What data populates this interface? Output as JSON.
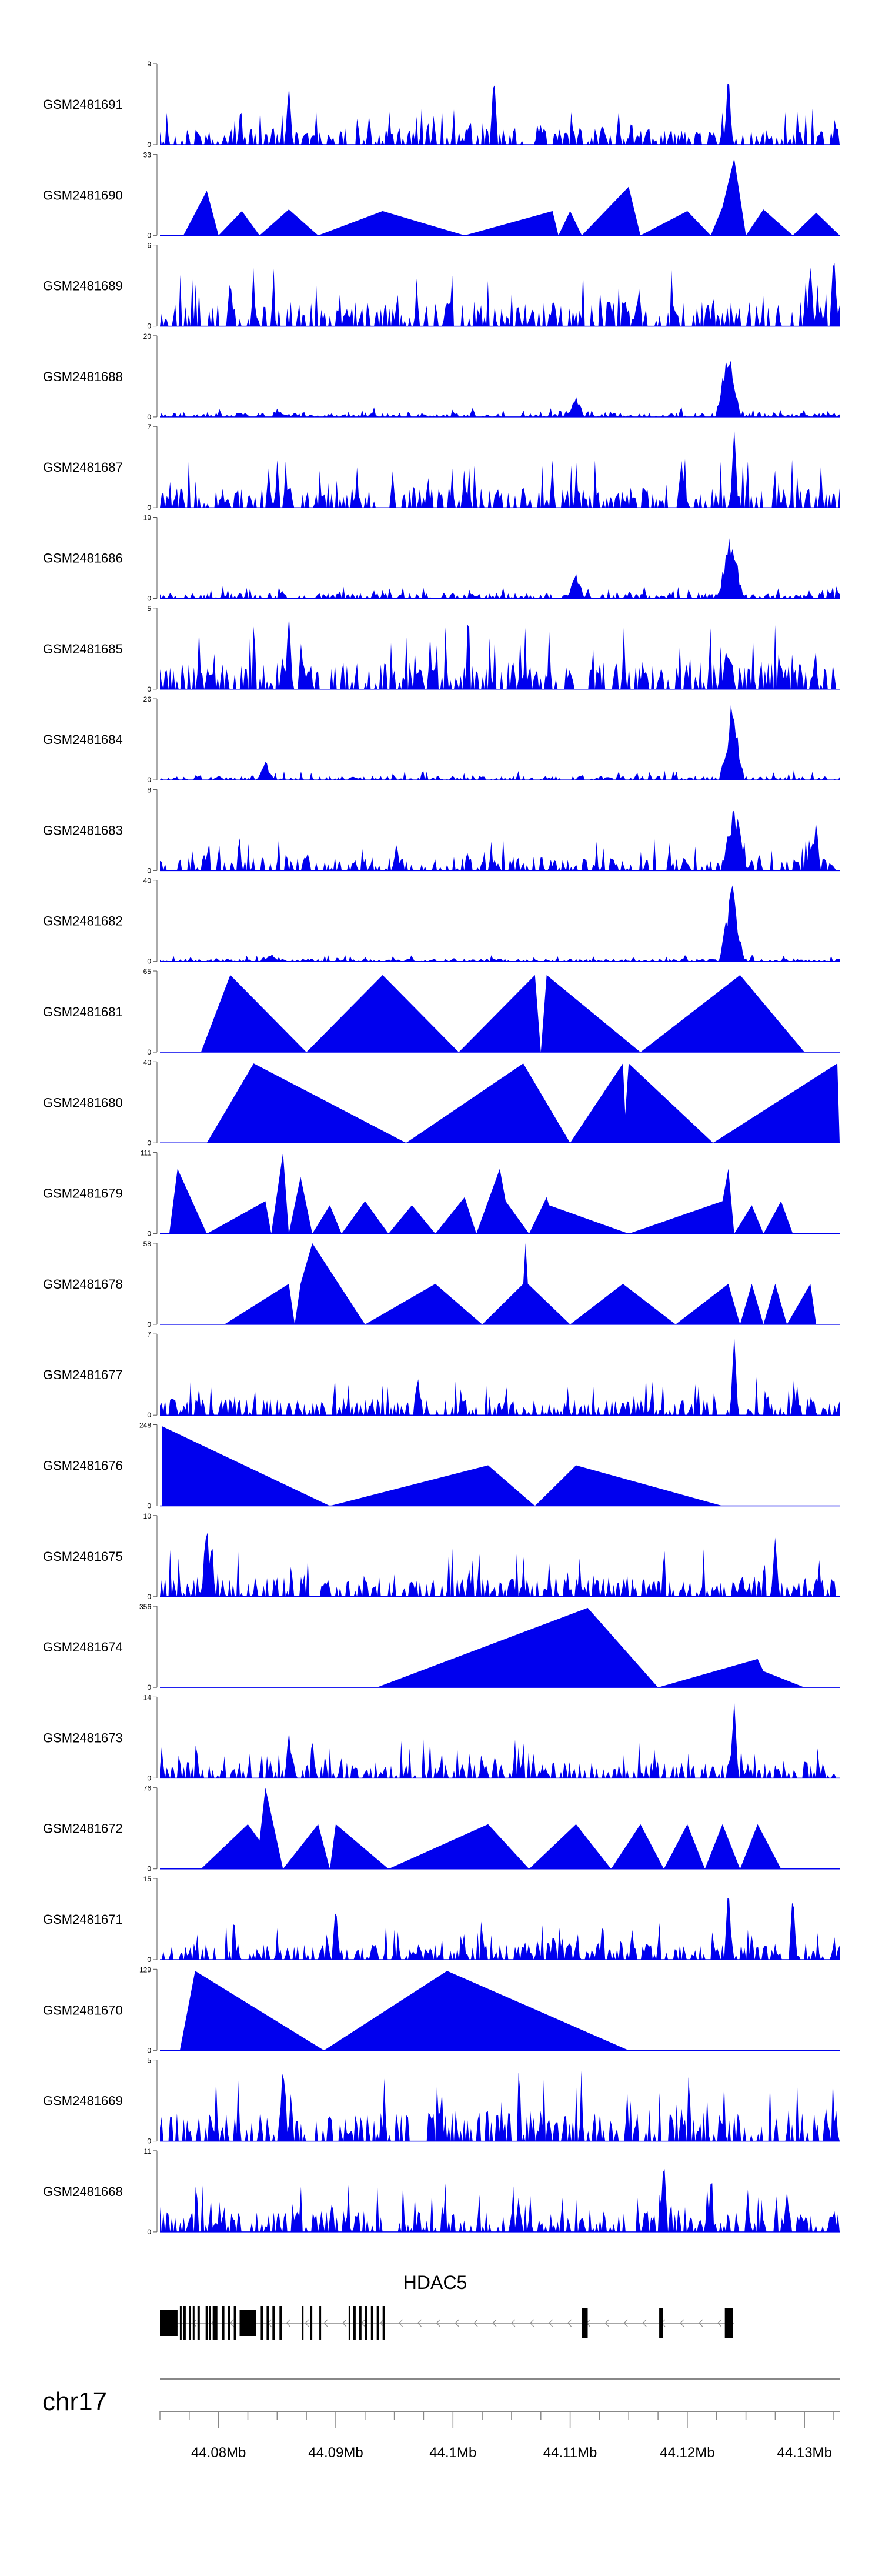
{
  "chart_data": {
    "type": "area",
    "title": "",
    "chromosome": "chr17",
    "xlim": [
      44.075,
      44.133
    ],
    "fill_color": "#0000EE",
    "x_tick_values": [
      44.08,
      44.09,
      44.1,
      44.11,
      44.12,
      44.13
    ],
    "x_tick_labels": [
      "44.08Mb",
      "44.09Mb",
      "44.1Mb",
      "44.11Mb",
      "44.12Mb",
      "44.13Mb"
    ],
    "gene": {
      "name": "HDAC5",
      "strand": "-",
      "start": 44.075,
      "end": 44.124,
      "exons": [
        [
          44.075,
          44.0765
        ],
        [
          44.0767,
          44.0768
        ],
        [
          44.077,
          44.0772
        ],
        [
          44.0775,
          44.0776
        ],
        [
          44.0778,
          44.0779
        ],
        [
          44.0782,
          44.0784
        ],
        [
          44.0789,
          44.0791
        ],
        [
          44.0792,
          44.0793
        ],
        [
          44.0795,
          44.0799
        ],
        [
          44.0803,
          44.0805
        ],
        [
          44.0808,
          44.081
        ],
        [
          44.0813,
          44.0815
        ],
        [
          44.0818,
          44.0832
        ],
        [
          44.0836,
          44.0838
        ],
        [
          44.0841,
          44.0843
        ],
        [
          44.0846,
          44.0848
        ],
        [
          44.0852,
          44.0854
        ],
        [
          44.0871,
          44.0872
        ],
        [
          44.0878,
          44.088
        ],
        [
          44.0886,
          44.0887
        ],
        [
          44.0911,
          44.0912
        ],
        [
          44.0915,
          44.0917
        ],
        [
          44.092,
          44.0922
        ],
        [
          44.0925,
          44.0927
        ],
        [
          44.093,
          44.0932
        ],
        [
          44.0935,
          44.0937
        ],
        [
          44.094,
          44.0942
        ],
        [
          44.111,
          44.1115
        ],
        [
          44.1176,
          44.1179
        ],
        [
          44.1232,
          44.1239
        ]
      ]
    },
    "series": [
      {
        "name": "GSM2481691",
        "ymax": 9,
        "pattern": "noise",
        "baseline": 0.12,
        "peaks": [
          [
            44.1035,
            0.05,
            0.9
          ],
          [
            44.1235,
            0.04,
            0.95
          ],
          [
            44.086,
            0.05,
            0.75
          ]
        ],
        "seed": 1
      },
      {
        "name": "GSM2481690",
        "ymax": 33,
        "pattern": "sparse",
        "anchors": [
          [
            44.077,
            0
          ],
          [
            44.079,
            0.55
          ],
          [
            44.08,
            0
          ],
          [
            44.082,
            0.3
          ],
          [
            44.0835,
            0
          ],
          [
            44.086,
            0.32
          ],
          [
            44.0885,
            0
          ],
          [
            44.094,
            0.3
          ],
          [
            44.101,
            0
          ],
          [
            44.1085,
            0.3
          ],
          [
            44.109,
            0
          ],
          [
            44.11,
            0.3
          ],
          [
            44.111,
            0
          ],
          [
            44.115,
            0.6
          ],
          [
            44.116,
            0
          ],
          [
            44.12,
            0.3
          ],
          [
            44.122,
            0
          ],
          [
            44.123,
            0.35
          ],
          [
            44.124,
            0.95
          ],
          [
            44.125,
            0
          ],
          [
            44.1265,
            0.32
          ],
          [
            44.129,
            0
          ],
          [
            44.131,
            0.28
          ],
          [
            44.133,
            0
          ]
        ]
      },
      {
        "name": "GSM2481689",
        "ymax": 6,
        "pattern": "noise",
        "baseline": 0.18,
        "peaks": [
          [
            44.1325,
            0.05,
            0.95
          ],
          [
            44.1305,
            0.05,
            0.8
          ],
          [
            44.081,
            0.05,
            0.6
          ]
        ],
        "seed": 3
      },
      {
        "name": "GSM2481688",
        "ymax": 20,
        "pattern": "noise",
        "baseline": 0.03,
        "peaks": [
          [
            44.1235,
            0.8,
            0.95
          ],
          [
            44.1105,
            0.4,
            0.35
          ]
        ],
        "seed": 4
      },
      {
        "name": "GSM2481687",
        "ymax": 7,
        "pattern": "noise",
        "baseline": 0.15,
        "peaks": [
          [
            44.124,
            0.05,
            1.0
          ],
          [
            44.1195,
            0.05,
            0.6
          ]
        ],
        "seed": 5
      },
      {
        "name": "GSM2481686",
        "ymax": 19,
        "pattern": "noise",
        "baseline": 0.04,
        "peaks": [
          [
            44.1237,
            0.8,
            0.95
          ],
          [
            44.1105,
            0.4,
            0.38
          ]
        ],
        "seed": 6
      },
      {
        "name": "GSM2481685",
        "ymax": 5,
        "pattern": "noise",
        "baseline": 0.2,
        "peaks": [
          [
            44.086,
            0.05,
            0.95
          ],
          [
            44.1235,
            0.3,
            0.75
          ]
        ],
        "seed": 7
      },
      {
        "name": "GSM2481684",
        "ymax": 26,
        "pattern": "noise",
        "baseline": 0.03,
        "peaks": [
          [
            44.1238,
            0.8,
            1.0
          ],
          [
            44.084,
            0.4,
            0.28
          ]
        ],
        "seed": 8
      },
      {
        "name": "GSM2481683",
        "ymax": 8,
        "pattern": "noise",
        "baseline": 0.1,
        "peaks": [
          [
            44.124,
            0.8,
            0.95
          ],
          [
            44.131,
            0.05,
            0.65
          ]
        ],
        "seed": 9
      },
      {
        "name": "GSM2481682",
        "ymax": 40,
        "pattern": "noise",
        "baseline": 0.02,
        "peaks": [
          [
            44.1238,
            0.8,
            1.0
          ],
          [
            44.0845,
            0.4,
            0.12
          ]
        ],
        "seed": 10
      },
      {
        "name": "GSM2481681",
        "ymax": 65,
        "pattern": "sparse",
        "anchors": [
          [
            44.0785,
            0
          ],
          [
            44.081,
            0.95
          ],
          [
            44.0875,
            0
          ],
          [
            44.094,
            0.95
          ],
          [
            44.1005,
            0
          ],
          [
            44.107,
            0.95
          ],
          [
            44.1075,
            0
          ],
          [
            44.108,
            0.95
          ],
          [
            44.116,
            0
          ],
          [
            44.1245,
            0.95
          ],
          [
            44.13,
            0
          ]
        ]
      },
      {
        "name": "GSM2481680",
        "ymax": 40,
        "pattern": "sparse",
        "anchors": [
          [
            44.079,
            0
          ],
          [
            44.083,
            0.98
          ],
          [
            44.096,
            0
          ],
          [
            44.106,
            0.98
          ],
          [
            44.11,
            0
          ],
          [
            44.1145,
            0.98
          ],
          [
            44.1147,
            0.35
          ],
          [
            44.115,
            0.98
          ],
          [
            44.1222,
            0
          ],
          [
            44.1328,
            0.98
          ],
          [
            44.133,
            0
          ]
        ]
      },
      {
        "name": "GSM2481679",
        "ymax": 111,
        "pattern": "sparse",
        "anchors": [
          [
            44.0758,
            0
          ],
          [
            44.0765,
            0.8
          ],
          [
            44.079,
            0
          ],
          [
            44.084,
            0.4
          ],
          [
            44.0845,
            0
          ],
          [
            44.0855,
            1.0
          ],
          [
            44.086,
            0
          ],
          [
            44.087,
            0.7
          ],
          [
            44.088,
            0
          ],
          [
            44.0895,
            0.35
          ],
          [
            44.0905,
            0
          ],
          [
            44.0925,
            0.4
          ],
          [
            44.0945,
            0
          ],
          [
            44.0965,
            0.35
          ],
          [
            44.0985,
            0
          ],
          [
            44.101,
            0.45
          ],
          [
            44.102,
            0
          ],
          [
            44.104,
            0.8
          ],
          [
            44.1045,
            0.4
          ],
          [
            44.1065,
            0
          ],
          [
            44.108,
            0.45
          ],
          [
            44.1082,
            0.35
          ],
          [
            44.115,
            0
          ],
          [
            44.123,
            0.4
          ],
          [
            44.1235,
            0.8
          ],
          [
            44.124,
            0
          ],
          [
            44.1255,
            0.35
          ],
          [
            44.1265,
            0
          ],
          [
            44.128,
            0.4
          ],
          [
            44.129,
            0
          ]
        ]
      },
      {
        "name": "GSM2481678",
        "ymax": 58,
        "pattern": "sparse",
        "anchors": [
          [
            44.0805,
            0
          ],
          [
            44.086,
            0.5
          ],
          [
            44.0865,
            0
          ],
          [
            44.087,
            0.5
          ],
          [
            44.088,
            1.0
          ],
          [
            44.0925,
            0
          ],
          [
            44.0985,
            0.5
          ],
          [
            44.1025,
            0
          ],
          [
            44.106,
            0.5
          ],
          [
            44.1062,
            1.0
          ],
          [
            44.1064,
            0.5
          ],
          [
            44.11,
            0
          ],
          [
            44.1145,
            0.5
          ],
          [
            44.119,
            0
          ],
          [
            44.1235,
            0.5
          ],
          [
            44.1245,
            0
          ],
          [
            44.1255,
            0.5
          ],
          [
            44.1265,
            0
          ],
          [
            44.1275,
            0.5
          ],
          [
            44.1285,
            0
          ],
          [
            44.1305,
            0.5
          ],
          [
            44.131,
            0
          ]
        ]
      },
      {
        "name": "GSM2481677",
        "ymax": 7,
        "pattern": "noise",
        "baseline": 0.12,
        "peaks": [
          [
            44.124,
            0.05,
            1.0
          ],
          [
            44.097,
            0.05,
            0.5
          ]
        ],
        "seed": 14
      },
      {
        "name": "GSM2481676",
        "ymax": 248,
        "pattern": "sparse",
        "anchors": [
          [
            44.0752,
            0.98
          ],
          [
            44.0895,
            0
          ],
          [
            44.103,
            0.5
          ],
          [
            44.107,
            0
          ],
          [
            44.1105,
            0.5
          ],
          [
            44.123,
            0
          ]
        ]
      },
      {
        "name": "GSM2481675",
        "ymax": 10,
        "pattern": "noise",
        "baseline": 0.15,
        "peaks": [
          [
            44.079,
            0.05,
            0.95
          ],
          [
            44.1275,
            0.05,
            0.75
          ]
        ],
        "seed": 16
      },
      {
        "name": "GSM2481674",
        "ymax": 356,
        "pattern": "sparse",
        "anchors": [
          [
            44.0935,
            0
          ],
          [
            44.1115,
            0.98
          ],
          [
            44.1175,
            0
          ],
          [
            44.126,
            0.35
          ],
          [
            44.1265,
            0.2
          ],
          [
            44.13,
            0
          ]
        ]
      },
      {
        "name": "GSM2481673",
        "ymax": 14,
        "pattern": "noise",
        "baseline": 0.12,
        "peaks": [
          [
            44.124,
            0.05,
            0.98
          ],
          [
            44.086,
            0.05,
            0.6
          ]
        ],
        "seed": 18
      },
      {
        "name": "GSM2481672",
        "ymax": 76,
        "pattern": "sparse",
        "anchors": [
          [
            44.0785,
            0
          ],
          [
            44.0825,
            0.55
          ],
          [
            44.0835,
            0.35
          ],
          [
            44.084,
            1.0
          ],
          [
            44.0855,
            0
          ],
          [
            44.0885,
            0.55
          ],
          [
            44.0895,
            0
          ],
          [
            44.09,
            0.55
          ],
          [
            44.0945,
            0
          ],
          [
            44.103,
            0.55
          ],
          [
            44.1065,
            0
          ],
          [
            44.1105,
            0.55
          ],
          [
            44.1135,
            0
          ],
          [
            44.116,
            0.55
          ],
          [
            44.118,
            0
          ],
          [
            44.12,
            0.55
          ],
          [
            44.1215,
            0
          ],
          [
            44.123,
            0.55
          ],
          [
            44.1245,
            0
          ],
          [
            44.126,
            0.55
          ],
          [
            44.128,
            0
          ]
        ]
      },
      {
        "name": "GSM2481671",
        "ymax": 15,
        "pattern": "noise",
        "baseline": 0.12,
        "peaks": [
          [
            44.1235,
            0.05,
            0.95
          ],
          [
            44.129,
            0.05,
            0.85
          ],
          [
            44.09,
            0.05,
            0.7
          ]
        ],
        "seed": 21
      },
      {
        "name": "GSM2481670",
        "ymax": 129,
        "pattern": "sparse",
        "anchors": [
          [
            44.0767,
            0
          ],
          [
            44.078,
            0.98
          ],
          [
            44.089,
            0
          ],
          [
            44.0995,
            0.98
          ],
          [
            44.115,
            0
          ]
        ]
      },
      {
        "name": "GSM2481669",
        "ymax": 5,
        "pattern": "noise",
        "baseline": 0.22,
        "peaks": [
          [
            44.0855,
            0.05,
            1.0
          ]
        ],
        "seed": 23
      },
      {
        "name": "GSM2481668",
        "ymax": 11,
        "pattern": "noise",
        "baseline": 0.15,
        "peaks": [
          [
            44.118,
            0.05,
            0.95
          ],
          [
            44.1285,
            0.05,
            0.5
          ]
        ],
        "seed": 24
      }
    ]
  }
}
